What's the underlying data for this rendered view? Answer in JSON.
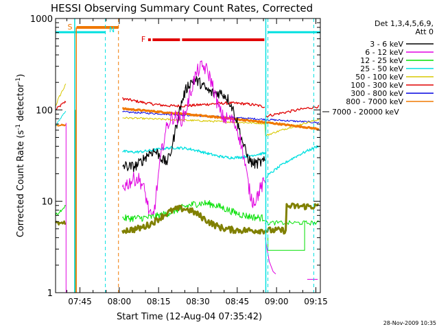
{
  "chart_data": {
    "type": "line",
    "title": "HESSI Observing Summary Count Rates, Corrected",
    "xlabel": "Start Time (12-Aug-04 07:35:42)",
    "ylabel_main": "Corrected Count Rate (s",
    "ylabel_sup1": "-1",
    "ylabel_mid": " detector",
    "ylabel_sup2": "-1",
    "ylabel_end": ")",
    "y_scale": "log",
    "ylim": [
      1,
      1000
    ],
    "xlim_minutes": [
      0,
      101
    ],
    "x_tick_labels": [
      "07:45",
      "08:00",
      "08:15",
      "08:30",
      "08:45",
      "09:00",
      "09:15"
    ],
    "x_tick_minutes": [
      9.3,
      24.3,
      39.3,
      54.3,
      69.3,
      84.3,
      99.3
    ],
    "y_tick_labels": [
      "1",
      "10",
      "100",
      "1000"
    ],
    "y_tick_values": [
      1,
      10,
      100,
      1000
    ],
    "legend": {
      "header1": "Det 1,3,4,5,6,9,",
      "header2": "Att 0",
      "position": "right"
    },
    "series": [
      {
        "name": "3 - 6 keV",
        "color": "#000000"
      },
      {
        "name": "6 - 12 keV",
        "color": "#e000e0"
      },
      {
        "name": "12 - 25 keV",
        "color": "#00e000"
      },
      {
        "name": "25 - 50 keV",
        "color": "#00e0e0"
      },
      {
        "name": "50 - 100 keV",
        "color": "#d8c800"
      },
      {
        "name": "100 - 300 keV",
        "color": "#e00000"
      },
      {
        "name": "300 - 800 keV",
        "color": "#0000e0"
      },
      {
        "name": "800 - 7000 keV",
        "color": "#f07800"
      },
      {
        "name": "7000 - 20000 keV",
        "color": "#808000"
      }
    ],
    "annotations": {
      "s_label": "S",
      "n_label": "N",
      "f_label": "F",
      "right_value_label": "7000 - 20000 keV"
    }
  },
  "footer": {
    "timestamp": "28-Nov-2009 10:35"
  }
}
